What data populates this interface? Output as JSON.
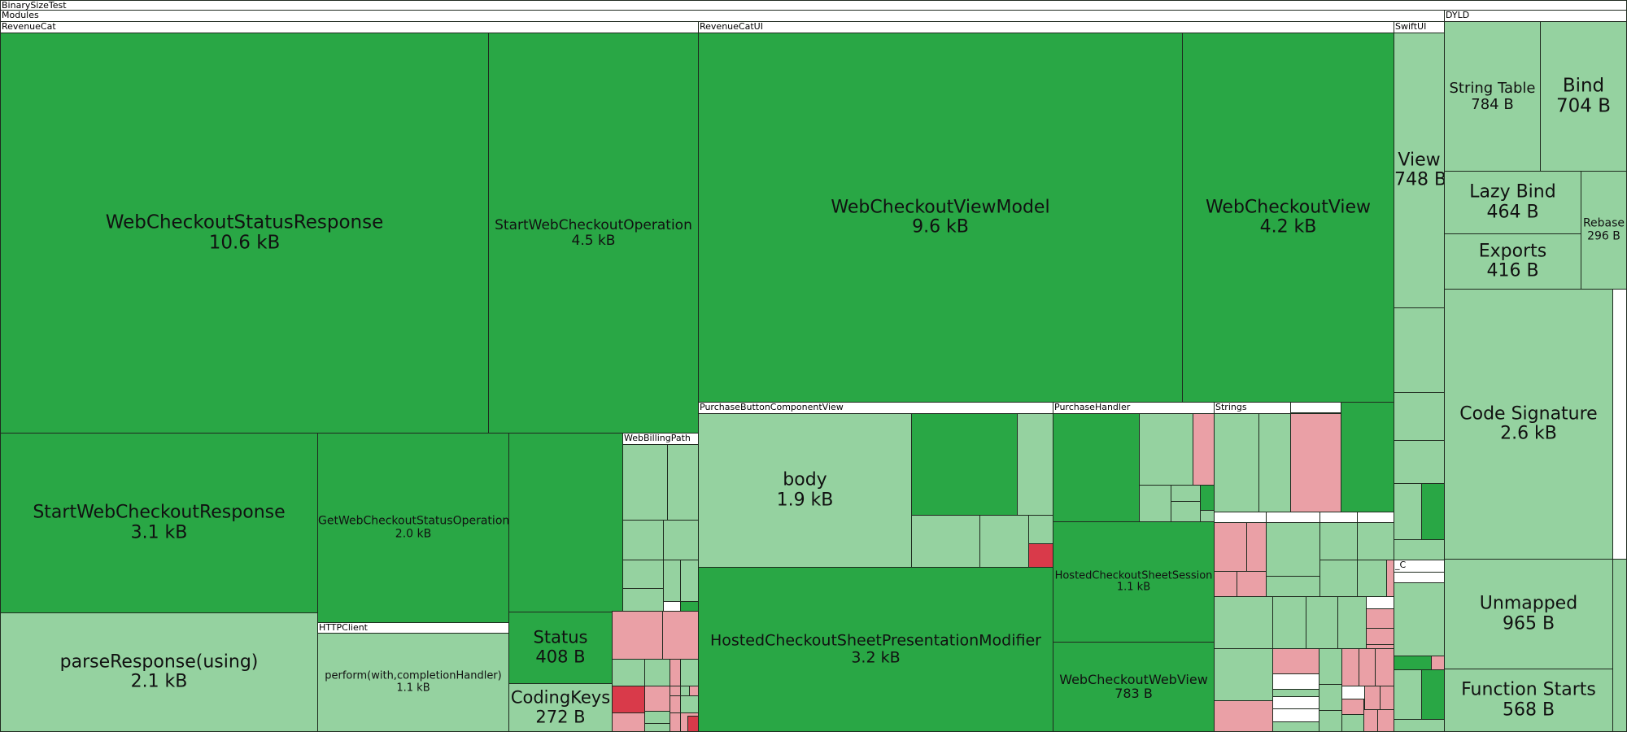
{
  "colors": {
    "dark_green": "#29a745",
    "light_green": "#95d2a0",
    "pink": "#eaa0a6",
    "red": "#d93a4a",
    "group": "#ffffff",
    "border": "#1f2a1f"
  },
  "chart_data": {
    "type": "treemap",
    "root": "BinarySizeTest",
    "groups": [
      {
        "key": "root",
        "label": "BinarySizeTest"
      },
      {
        "key": "modules",
        "label": "Modules"
      },
      {
        "key": "revenuecat",
        "label": "RevenueCat"
      },
      {
        "key": "revenuecatui",
        "label": "RevenueCatUI"
      },
      {
        "key": "swiftui",
        "label": "SwiftUI"
      },
      {
        "key": "dyld",
        "label": "DYLD"
      },
      {
        "key": "webbillingpath",
        "label": "WebBillingPath"
      },
      {
        "key": "httpclient",
        "label": "HTTPClient"
      },
      {
        "key": "purchasebutton",
        "label": "PurchaseButtonComponentView"
      },
      {
        "key": "purchasehandler",
        "label": "PurchaseHandler"
      },
      {
        "key": "strings",
        "label": "Strings"
      },
      {
        "key": "c_group",
        "label": "_C"
      }
    ],
    "leaves": [
      {
        "name": "WebCheckoutStatusResponse",
        "size": "10.6 kB",
        "module": "RevenueCat",
        "tone": "dark_green"
      },
      {
        "name": "StartWebCheckoutOperation",
        "size": "4.5 kB",
        "module": "RevenueCat",
        "tone": "dark_green"
      },
      {
        "name": "StartWebCheckoutResponse",
        "size": "3.1 kB",
        "module": "RevenueCat",
        "tone": "dark_green"
      },
      {
        "name": "GetWebCheckoutStatusOperation",
        "size": "2.0 kB",
        "module": "RevenueCat",
        "tone": "dark_green"
      },
      {
        "name": "parseResponse(using)",
        "size": "2.1 kB",
        "module": "RevenueCat",
        "tone": "light_green"
      },
      {
        "name": "perform(with,completionHandler)",
        "size": "1.1 kB",
        "module": "RevenueCat",
        "tone": "light_green"
      },
      {
        "name": "Status",
        "size": "408 B",
        "module": "RevenueCat",
        "tone": "dark_green"
      },
      {
        "name": "CodingKeys",
        "size": "272 B",
        "module": "RevenueCat",
        "tone": "light_green"
      },
      {
        "name": "WebCheckoutViewModel",
        "size": "9.6 kB",
        "module": "RevenueCatUI",
        "tone": "dark_green"
      },
      {
        "name": "WebCheckoutView",
        "size": "4.2 kB",
        "module": "RevenueCatUI",
        "tone": "dark_green"
      },
      {
        "name": "body",
        "size": "1.9 kB",
        "module": "RevenueCatUI",
        "tone": "light_green"
      },
      {
        "name": "HostedCheckoutSheetPresentationModifier",
        "size": "3.2 kB",
        "module": "RevenueCatUI",
        "tone": "dark_green"
      },
      {
        "name": "HostedCheckoutSheetSession",
        "size": "1.1 kB",
        "module": "RevenueCatUI",
        "tone": "dark_green"
      },
      {
        "name": "WebCheckoutWebView",
        "size": "783 B",
        "module": "RevenueCatUI",
        "tone": "dark_green"
      },
      {
        "name": "View",
        "size": "748 B",
        "module": "SwiftUI",
        "tone": "light_green"
      },
      {
        "name": "String Table",
        "size": "784 B",
        "module": "DYLD",
        "tone": "light_green"
      },
      {
        "name": "Bind",
        "size": "704 B",
        "module": "DYLD",
        "tone": "light_green"
      },
      {
        "name": "Lazy Bind",
        "size": "464 B",
        "module": "DYLD",
        "tone": "light_green"
      },
      {
        "name": "Exports",
        "size": "416 B",
        "module": "DYLD",
        "tone": "light_green"
      },
      {
        "name": "Rebase",
        "size": "296 B",
        "module": "DYLD",
        "tone": "light_green"
      },
      {
        "name": "Code Signature",
        "size": "2.6 kB",
        "module": "DYLD",
        "tone": "light_green"
      },
      {
        "name": "Unmapped",
        "size": "965 B",
        "module": "DYLD",
        "tone": "light_green"
      },
      {
        "name": "Function Starts",
        "size": "568 B",
        "module": "DYLD",
        "tone": "light_green"
      }
    ]
  }
}
